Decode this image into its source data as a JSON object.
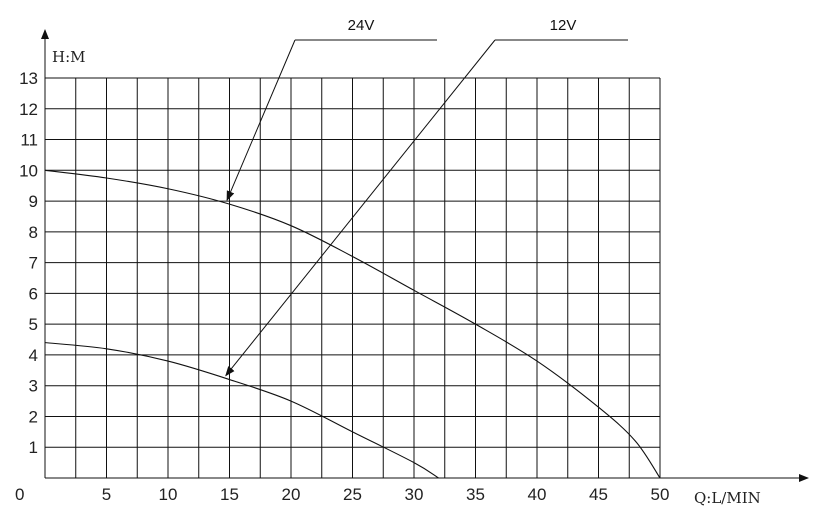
{
  "chart_data": {
    "type": "line",
    "xlabel": "Q:L/MIN",
    "ylabel": "H:M",
    "xlim": [
      0,
      50
    ],
    "ylim": [
      0,
      13
    ],
    "x_ticks": [
      "0",
      "5",
      "10",
      "15",
      "20",
      "25",
      "30",
      "35",
      "40",
      "45",
      "50"
    ],
    "y_ticks": [
      "1",
      "2",
      "3",
      "4",
      "5",
      "6",
      "7",
      "8",
      "9",
      "10",
      "11",
      "12",
      "13"
    ],
    "grid": true,
    "series": [
      {
        "name": "24V",
        "x": [
          0,
          5,
          10,
          15,
          20,
          25,
          30,
          35,
          40,
          45,
          48,
          50
        ],
        "y": [
          10,
          9.75,
          9.4,
          8.9,
          8.2,
          7.2,
          6.1,
          5.0,
          3.8,
          2.3,
          1.2,
          0
        ]
      },
      {
        "name": "12V",
        "x": [
          0,
          5,
          10,
          15,
          20,
          25,
          30,
          32
        ],
        "y": [
          4.4,
          4.2,
          3.8,
          3.2,
          2.5,
          1.5,
          0.5,
          0
        ]
      }
    ]
  }
}
